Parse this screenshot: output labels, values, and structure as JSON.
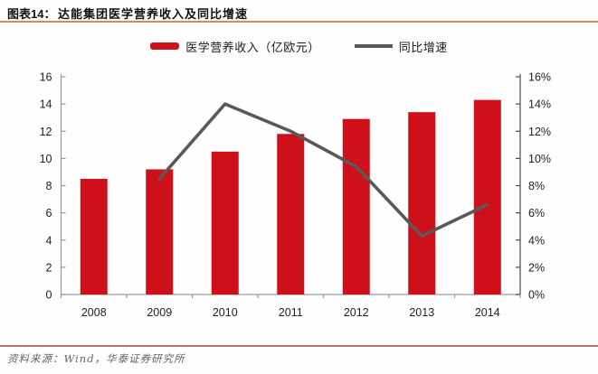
{
  "header": {
    "figure_label": "图表14：",
    "title": "达能集团医学营养收入及同比增速"
  },
  "footer": {
    "source": "资料来源：Wind，华泰证券研究所"
  },
  "colors": {
    "bar": "#ce101a",
    "line": "#595959",
    "header_rule": "#c5905a",
    "footer_rule": "#bc7272",
    "left_axis": "#9a9a9a",
    "right_axis": "#4a4a4a",
    "baseline": "#9a9a9a",
    "axis_text": "#1f1f1f"
  },
  "chart_data": {
    "type": "bar",
    "subtype": "bar+line-combo",
    "title": "达能集团医学营养收入及同比增速",
    "categories": [
      "2008",
      "2009",
      "2010",
      "2011",
      "2012",
      "2013",
      "2014"
    ],
    "series": [
      {
        "name": "医学营养收入（亿欧元）",
        "type": "bar",
        "axis": "left",
        "values": [
          8.5,
          9.2,
          10.5,
          11.8,
          12.9,
          13.4,
          14.3
        ]
      },
      {
        "name": "同比增速",
        "type": "line",
        "axis": "right",
        "unit": "%",
        "values": [
          null,
          8.5,
          14.0,
          12.0,
          9.4,
          4.3,
          6.6
        ]
      }
    ],
    "left_axis": {
      "min": 0,
      "max": 16,
      "step": 2,
      "tick_labels": [
        "0",
        "2",
        "4",
        "6",
        "8",
        "10",
        "12",
        "14",
        "16"
      ]
    },
    "right_axis": {
      "min": 0,
      "max": 16,
      "step": 2,
      "tick_labels": [
        "0%",
        "2%",
        "4%",
        "6%",
        "8%",
        "10%",
        "12%",
        "14%",
        "16%"
      ]
    },
    "legend_position": "top",
    "grid": false
  }
}
